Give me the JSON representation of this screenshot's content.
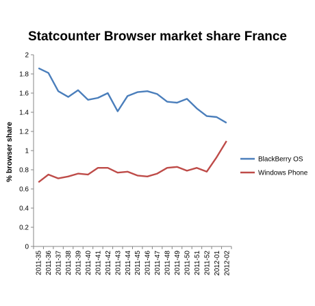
{
  "chart_data": {
    "type": "line",
    "title": "Statcounter Browser market share France",
    "xlabel": "",
    "ylabel": "% browser share",
    "ylim": [
      0,
      2
    ],
    "yticks": [
      0,
      0.2,
      0.4,
      0.6,
      0.8,
      1,
      1.2,
      1.4,
      1.6,
      1.8,
      2
    ],
    "yticklabels": [
      "0",
      "0.2",
      "0.4",
      "0.6",
      "0.8",
      "1",
      "1.2",
      "1.4",
      "1.6",
      "1.8",
      "2"
    ],
    "grid": false,
    "legend_position": "right",
    "categories": [
      "2011-35",
      "2011-36",
      "2011-37",
      "2011-38",
      "2011-39",
      "2011-40",
      "2011-41",
      "2011-42",
      "2011-43",
      "2011-44",
      "2011-45",
      "2011-46",
      "2011-47",
      "2011-48",
      "2011-49",
      "2011-50",
      "2011-51",
      "2011-52",
      "2012-01",
      "2012-02"
    ],
    "series": [
      {
        "name": "BlackBerry OS",
        "color": "#4a7ebb",
        "values": [
          1.86,
          1.81,
          1.62,
          1.56,
          1.63,
          1.53,
          1.55,
          1.6,
          1.41,
          1.57,
          1.61,
          1.62,
          1.59,
          1.51,
          1.5,
          1.54,
          1.44,
          1.36,
          1.35,
          1.29
        ]
      },
      {
        "name": "Windows Phone",
        "color": "#be4b48",
        "values": [
          0.67,
          0.75,
          0.71,
          0.73,
          0.76,
          0.75,
          0.82,
          0.82,
          0.77,
          0.78,
          0.74,
          0.73,
          0.76,
          0.82,
          0.83,
          0.79,
          0.82,
          0.78,
          0.93,
          1.1
        ]
      }
    ]
  }
}
